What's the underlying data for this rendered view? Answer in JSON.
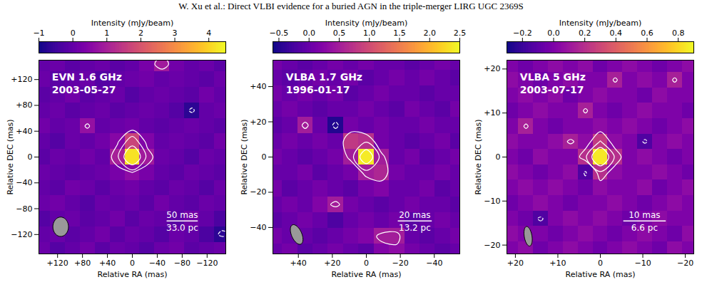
{
  "header": "W. Xu et al.: Direct VLBI evidence for a buried AGN in the triple-merger LIRG UGC 2369S",
  "chart_data": [
    {
      "type": "image",
      "title": "EVN 1.6 GHz",
      "subtitle": "2003-05-27",
      "x_label": "Relative RA (mas)",
      "y_label": "Relative DEC (mas)",
      "xlim": [
        150,
        -150
      ],
      "ylim": [
        -150,
        150
      ],
      "xticks": [
        {
          "value": 120,
          "label": "+120"
        },
        {
          "value": 80,
          "label": "+80"
        },
        {
          "value": 40,
          "label": "+40"
        },
        0,
        {
          "value": -40,
          "label": "−40"
        },
        {
          "value": -80,
          "label": "−80"
        },
        {
          "value": -120,
          "label": "−120"
        }
      ],
      "yticks": [
        {
          "value": 120,
          "label": "+120"
        },
        {
          "value": 80,
          "label": "+80"
        },
        {
          "value": 40,
          "label": "+40"
        },
        0,
        {
          "value": -40,
          "label": "−40"
        },
        {
          "value": -80,
          "label": "−80"
        },
        {
          "value": -120,
          "label": "−120"
        }
      ],
      "colorbar": {
        "label": "Intensity (mJy/beam)",
        "range": [
          -1,
          4.5
        ],
        "ticks": [
          {
            "value": -1,
            "label": "−1"
          },
          0,
          1,
          2,
          3,
          4
        ]
      },
      "grid_x": [
        144,
        120,
        96,
        72,
        48,
        24,
        0,
        -24,
        -48,
        -72,
        -96,
        -120,
        -144
      ],
      "grid_y": [
        -144,
        -120,
        -96,
        -72,
        -48,
        -24,
        0,
        24,
        48,
        72,
        96,
        120,
        144
      ],
      "intensity": [
        [
          0.1,
          -0.2,
          0.0,
          0.2,
          -0.1,
          0.1,
          0.0,
          -0.2,
          0.1,
          0.2,
          -0.1,
          0.0,
          0.1
        ],
        [
          0.0,
          0.1,
          -0.1,
          0.0,
          0.2,
          -0.1,
          0.1,
          0.0,
          -0.2,
          0.1,
          0.0,
          -0.3,
          -0.7
        ],
        [
          -0.2,
          0.0,
          0.1,
          -0.1,
          0.0,
          0.2,
          -0.1,
          0.1,
          0.0,
          -0.1,
          0.2,
          0.0,
          -0.3
        ],
        [
          0.1,
          0.2,
          0.0,
          -0.2,
          0.1,
          0.0,
          0.1,
          -0.1,
          0.2,
          0.0,
          -0.1,
          0.1,
          0.0
        ],
        [
          0.0,
          -0.1,
          0.2,
          0.1,
          -0.1,
          0.1,
          0.2,
          0.0,
          -0.1,
          0.1,
          0.0,
          -0.2,
          0.1
        ],
        [
          0.1,
          0.0,
          -0.1,
          0.0,
          0.1,
          0.3,
          0.6,
          0.3,
          0.0,
          -0.1,
          0.1,
          0.0,
          -0.1
        ],
        [
          -0.1,
          0.1,
          0.0,
          0.2,
          0.0,
          1.0,
          4.2,
          0.9,
          0.1,
          0.0,
          -0.2,
          0.1,
          0.0
        ],
        [
          0.0,
          -0.2,
          0.1,
          0.0,
          0.2,
          0.5,
          1.7,
          0.4,
          0.0,
          0.1,
          0.0,
          -0.1,
          0.2
        ],
        [
          0.2,
          0.0,
          0.1,
          0.7,
          0.0,
          0.1,
          0.2,
          0.0,
          -0.1,
          0.0,
          0.1,
          0.0,
          -0.1
        ],
        [
          0.0,
          0.1,
          -0.1,
          0.0,
          0.1,
          -0.1,
          0.0,
          0.1,
          0.0,
          -0.2,
          -0.7,
          0.0,
          0.1
        ],
        [
          -0.1,
          0.0,
          0.2,
          -0.1,
          0.0,
          0.1,
          -0.2,
          0.0,
          0.1,
          0.0,
          -0.1,
          0.2,
          0.0
        ],
        [
          0.1,
          -0.1,
          0.0,
          0.1,
          -0.2,
          0.0,
          0.1,
          0.2,
          0.0,
          0.1,
          0.0,
          -0.1,
          0.1
        ],
        [
          0.0,
          0.1,
          -0.1,
          0.0,
          0.1,
          -0.1,
          0.0,
          0.3,
          0.9,
          0.2,
          0.0,
          0.1,
          -0.1
        ]
      ],
      "contour_levels": [
        -0.6,
        0.6,
        1.2,
        2.4
      ],
      "beam": {
        "x": 115,
        "y": -108,
        "major": 30,
        "minor": 25,
        "pa": 0
      },
      "scale_bar": {
        "length": 50,
        "label": "50 mas",
        "sublabel": "33.0 pc"
      }
    },
    {
      "type": "image",
      "title": "VLBA 1.7 GHz",
      "subtitle": "1996-01-17",
      "x_label": "Relative RA (mas)",
      "y_label": "Relative DEC (mas)",
      "xlim": [
        55,
        -55
      ],
      "ylim": [
        -55,
        55
      ],
      "xticks": [
        {
          "value": 40,
          "label": "+40"
        },
        {
          "value": 20,
          "label": "+20"
        },
        0,
        {
          "value": -20,
          "label": "−20"
        },
        {
          "value": -40,
          "label": "−40"
        }
      ],
      "yticks": [
        {
          "value": 40,
          "label": "+40"
        },
        {
          "value": 20,
          "label": "+20"
        },
        0,
        {
          "value": -20,
          "label": "−20"
        },
        {
          "value": -40,
          "label": "−40"
        }
      ],
      "colorbar": {
        "label": "Intensity (mJy/beam)",
        "range": [
          -0.6,
          2.5
        ],
        "ticks": [
          {
            "value": -0.5,
            "label": "−0.5"
          },
          {
            "value": 0,
            "label": "0.0"
          },
          0.5,
          {
            "value": 1,
            "label": "1.0"
          },
          1.5,
          {
            "value": 2,
            "label": "2.0"
          },
          2.5
        ]
      },
      "grid_x": [
        54,
        45,
        36,
        27,
        18,
        9,
        0,
        -9,
        -18,
        -27,
        -36,
        -45,
        -54
      ],
      "grid_y": [
        -54,
        -45,
        -36,
        -27,
        -18,
        -9,
        0,
        9,
        18,
        27,
        36,
        45,
        54
      ],
      "intensity": [
        [
          0.0,
          0.1,
          -0.1,
          0.0,
          0.1,
          0.0,
          -0.1,
          0.2,
          0.3,
          0.1,
          0.0,
          -0.1,
          0.0
        ],
        [
          0.1,
          0.0,
          0.0,
          -0.1,
          0.0,
          0.1,
          0.2,
          0.5,
          0.5,
          0.0,
          -0.1,
          0.0,
          0.1
        ],
        [
          -0.1,
          0.0,
          0.1,
          0.0,
          -0.2,
          0.0,
          0.1,
          0.0,
          0.1,
          -0.1,
          0.0,
          0.1,
          0.0
        ],
        [
          0.0,
          0.1,
          0.0,
          0.2,
          0.5,
          0.1,
          0.0,
          -0.1,
          0.0,
          0.1,
          0.0,
          0.0,
          -0.1
        ],
        [
          0.1,
          -0.1,
          0.0,
          0.1,
          0.0,
          -0.1,
          0.1,
          0.2,
          0.0,
          0.0,
          0.1,
          -0.1,
          0.0
        ],
        [
          0.0,
          0.0,
          0.1,
          -0.1,
          0.0,
          0.1,
          0.5,
          0.6,
          0.1,
          0.0,
          0.0,
          0.1,
          0.0
        ],
        [
          0.1,
          0.0,
          -0.1,
          0.0,
          0.1,
          0.5,
          2.4,
          0.5,
          0.0,
          0.1,
          -0.1,
          0.0,
          0.1
        ],
        [
          0.0,
          0.1,
          0.0,
          0.1,
          0.0,
          0.8,
          0.7,
          0.1,
          0.0,
          -0.1,
          0.0,
          0.1,
          -0.1
        ],
        [
          -0.1,
          0.0,
          0.5,
          0.0,
          -0.5,
          0.1,
          0.0,
          0.1,
          0.0,
          0.0,
          0.1,
          0.0,
          0.0
        ],
        [
          0.0,
          0.1,
          0.0,
          -0.1,
          0.0,
          0.0,
          0.1,
          0.0,
          -0.1,
          0.1,
          0.0,
          -0.1,
          0.1
        ],
        [
          0.1,
          0.0,
          0.1,
          0.0,
          0.1,
          -0.1,
          0.0,
          0.1,
          0.0,
          0.0,
          -0.1,
          0.0,
          0.0
        ],
        [
          0.0,
          -0.1,
          0.0,
          0.1,
          0.0,
          0.1,
          -0.1,
          0.0,
          0.1,
          0.0,
          0.1,
          0.0,
          -0.1
        ],
        [
          0.1,
          0.0,
          -0.1,
          0.0,
          0.1,
          0.0,
          0.1,
          0.0,
          0.0,
          -0.1,
          0.0,
          0.1,
          0.0
        ]
      ],
      "contour_levels": [
        -0.4,
        0.4,
        0.8,
        1.6
      ],
      "beam": {
        "x": 41,
        "y": -44,
        "major": 12,
        "minor": 6,
        "pa": 25
      },
      "scale_bar": {
        "length": 20,
        "label": "20 mas",
        "sublabel": "13.2 pc"
      }
    },
    {
      "type": "image",
      "title": "VLBA 5 GHz",
      "subtitle": "2003-07-17",
      "x_label": "Relative RA (mas)",
      "y_label": "Relative DEC (mas)",
      "xlim": [
        22,
        -22
      ],
      "ylim": [
        -22,
        22
      ],
      "xticks": [
        {
          "value": 20,
          "label": "+20"
        },
        {
          "value": 10,
          "label": "+10"
        },
        0,
        {
          "value": -10,
          "label": "−10"
        },
        {
          "value": -20,
          "label": "−20"
        }
      ],
      "yticks": [
        {
          "value": 20,
          "label": "+20"
        },
        {
          "value": 10,
          "label": "+10"
        },
        0,
        {
          "value": -10,
          "label": "−10"
        },
        {
          "value": -20,
          "label": "−20"
        }
      ],
      "colorbar": {
        "label": "Intensity (mJy/beam)",
        "range": [
          -0.3,
          0.9
        ],
        "ticks": [
          {
            "value": -0.2,
            "label": "−0.2"
          },
          {
            "value": 0,
            "label": "0.0"
          },
          0.2,
          0.4,
          0.6,
          0.8
        ]
      },
      "grid_x": [
        21,
        17.5,
        14,
        10.5,
        7,
        3.5,
        0,
        -3.5,
        -7,
        -10.5,
        -14,
        -17.5,
        -21
      ],
      "grid_y": [
        -21,
        -17.5,
        -14,
        -10.5,
        -7,
        -3.5,
        0,
        3.5,
        7,
        10.5,
        14,
        17.5,
        21
      ],
      "intensity": [
        [
          0.0,
          0.05,
          -0.05,
          0.0,
          0.05,
          0.0,
          -0.05,
          0.0,
          0.05,
          0.0,
          -0.05,
          0.05,
          0.0
        ],
        [
          0.05,
          0.0,
          0.0,
          -0.05,
          0.0,
          0.05,
          0.0,
          -0.05,
          0.0,
          0.05,
          0.0,
          -0.05,
          0.05
        ],
        [
          0.0,
          -0.05,
          -0.14,
          0.0,
          0.05,
          0.0,
          0.05,
          0.0,
          -0.05,
          0.0,
          0.05,
          0.0,
          0.0
        ],
        [
          -0.05,
          0.0,
          0.05,
          0.0,
          -0.05,
          0.0,
          0.0,
          0.05,
          0.0,
          -0.05,
          0.0,
          0.05,
          0.0
        ],
        [
          0.0,
          0.05,
          0.0,
          0.05,
          0.0,
          -0.05,
          0.05,
          0.0,
          0.0,
          0.05,
          -0.05,
          0.0,
          0.05
        ],
        [
          0.05,
          0.0,
          -0.05,
          0.0,
          0.05,
          -0.14,
          0.2,
          0.05,
          0.0,
          0.0,
          0.05,
          0.0,
          -0.05
        ],
        [
          0.0,
          -0.05,
          0.05,
          0.0,
          0.0,
          0.2,
          0.85,
          0.2,
          0.0,
          0.05,
          0.0,
          -0.05,
          0.0
        ],
        [
          0.05,
          0.0,
          0.0,
          0.05,
          0.14,
          0.05,
          0.25,
          0.05,
          0.0,
          -0.14,
          0.0,
          0.05,
          0.0
        ],
        [
          0.0,
          0.14,
          0.0,
          -0.05,
          0.0,
          0.0,
          0.05,
          0.0,
          0.05,
          0.0,
          -0.05,
          0.0,
          0.05
        ],
        [
          -0.05,
          0.0,
          0.05,
          0.0,
          0.0,
          0.14,
          0.0,
          -0.05,
          0.0,
          0.05,
          0.0,
          0.0,
          -0.05
        ],
        [
          0.0,
          0.05,
          0.0,
          0.05,
          -0.05,
          0.0,
          0.05,
          0.0,
          0.0,
          -0.05,
          0.05,
          0.0,
          0.0
        ],
        [
          0.05,
          0.0,
          -0.05,
          0.0,
          0.05,
          0.0,
          0.0,
          0.14,
          0.0,
          0.05,
          0.0,
          0.14,
          0.0
        ],
        [
          0.0,
          -0.05,
          0.0,
          0.05,
          0.0,
          0.05,
          -0.05,
          0.0,
          0.05,
          0.0,
          -0.05,
          0.0,
          0.05
        ]
      ],
      "contour_levels": [
        -0.12,
        0.12,
        0.24,
        0.48
      ],
      "beam": {
        "x": 17,
        "y": -18,
        "major": 4.5,
        "minor": 1.8,
        "pa": 10
      },
      "scale_bar": {
        "length": 10,
        "label": "10 mas",
        "sublabel": "6.6 pc"
      }
    }
  ]
}
